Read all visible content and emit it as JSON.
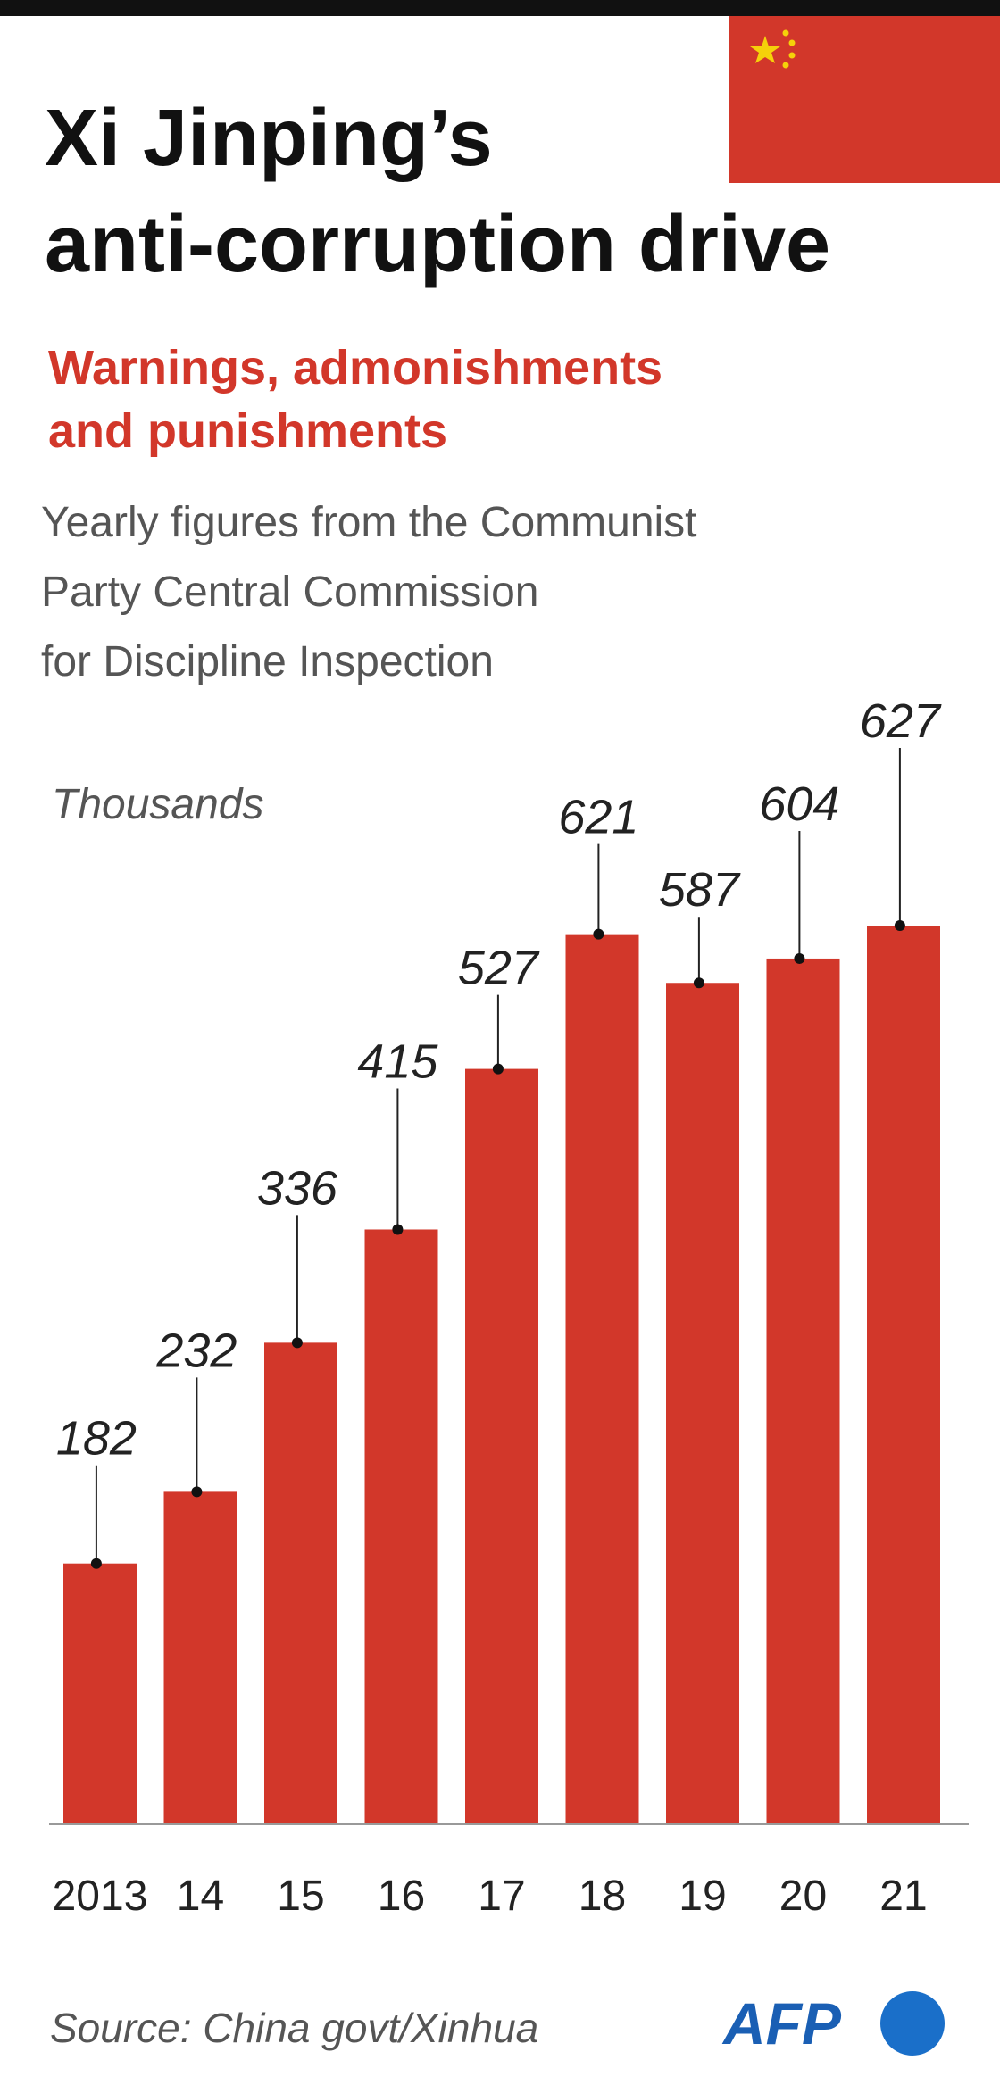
{
  "chart_data": {
    "type": "bar",
    "title": [
      "Xi Jinping’s",
      "anti-corruption drive"
    ],
    "subtitle": [
      "Warnings, admonishments",
      "and punishments"
    ],
    "description": [
      "Yearly figures from the Communist",
      "Party Central Commission",
      "for Discipline Inspection"
    ],
    "unit": "Thousands",
    "categories": [
      "2013",
      "14",
      "15",
      "16",
      "17",
      "18",
      "19",
      "20",
      "21"
    ],
    "values": [
      182,
      232,
      336,
      415,
      527,
      621,
      587,
      604,
      627
    ],
    "color": "#d2372a",
    "source": "Source: China govt/Xinhua",
    "logo": "AFP"
  }
}
